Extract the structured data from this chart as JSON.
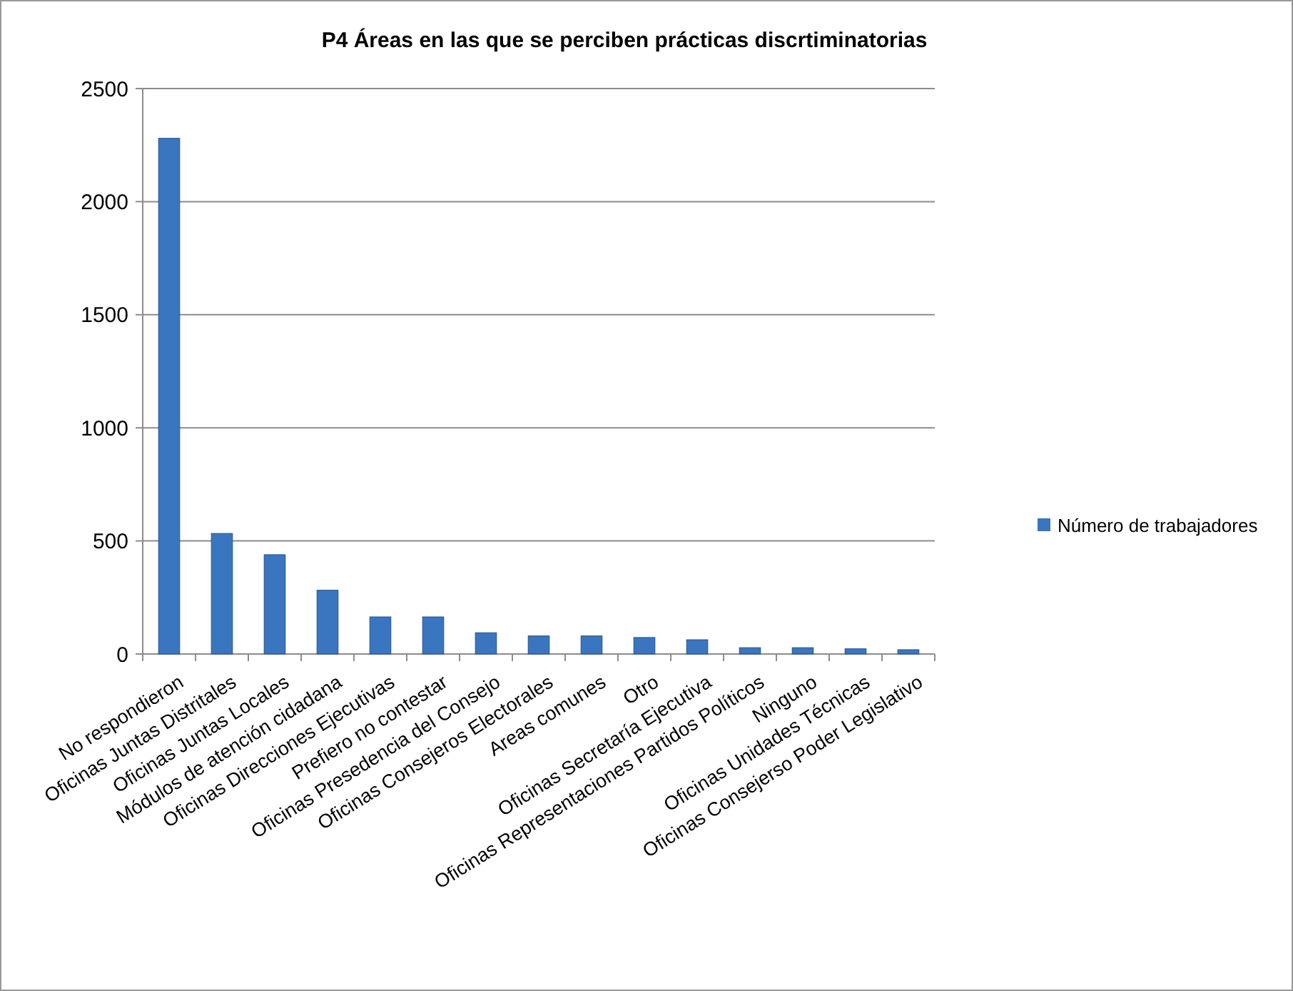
{
  "chart_data": {
    "type": "bar",
    "title": "P4 Áreas en las que se perciben prácticas discrtiminatorias",
    "categories": [
      "No respondieron",
      "Oficinas Juntas Distritales",
      "Oficinas Juntas Locales",
      "Módulos de atención cidadana",
      "Oficinas Direcciones Ejecutivas",
      "Prefiero no contestar",
      "Oficinas Presedencia del Consejo",
      "Oficinas Consejeros Electorales",
      "Areas comunes",
      "Otro",
      "Oficinas Secretaría Ejecutiva",
      "Oficinas Representaciones Partidos Políticos",
      "Ninguno",
      "Oficinas Unidades Técnicas",
      "Oficinas Consejerso Poder Legislativo"
    ],
    "series": [
      {
        "name": "Número de trabajadores",
        "color": "#3a75c0",
        "values": [
          2280,
          533,
          439,
          282,
          164,
          164,
          94,
          80,
          80,
          73,
          63,
          28,
          28,
          23,
          19
        ]
      }
    ],
    "ylim": [
      0,
      2500
    ],
    "yticks": [
      0,
      500,
      1000,
      1500,
      2000,
      2500
    ],
    "grid": "y",
    "legend": "right"
  }
}
